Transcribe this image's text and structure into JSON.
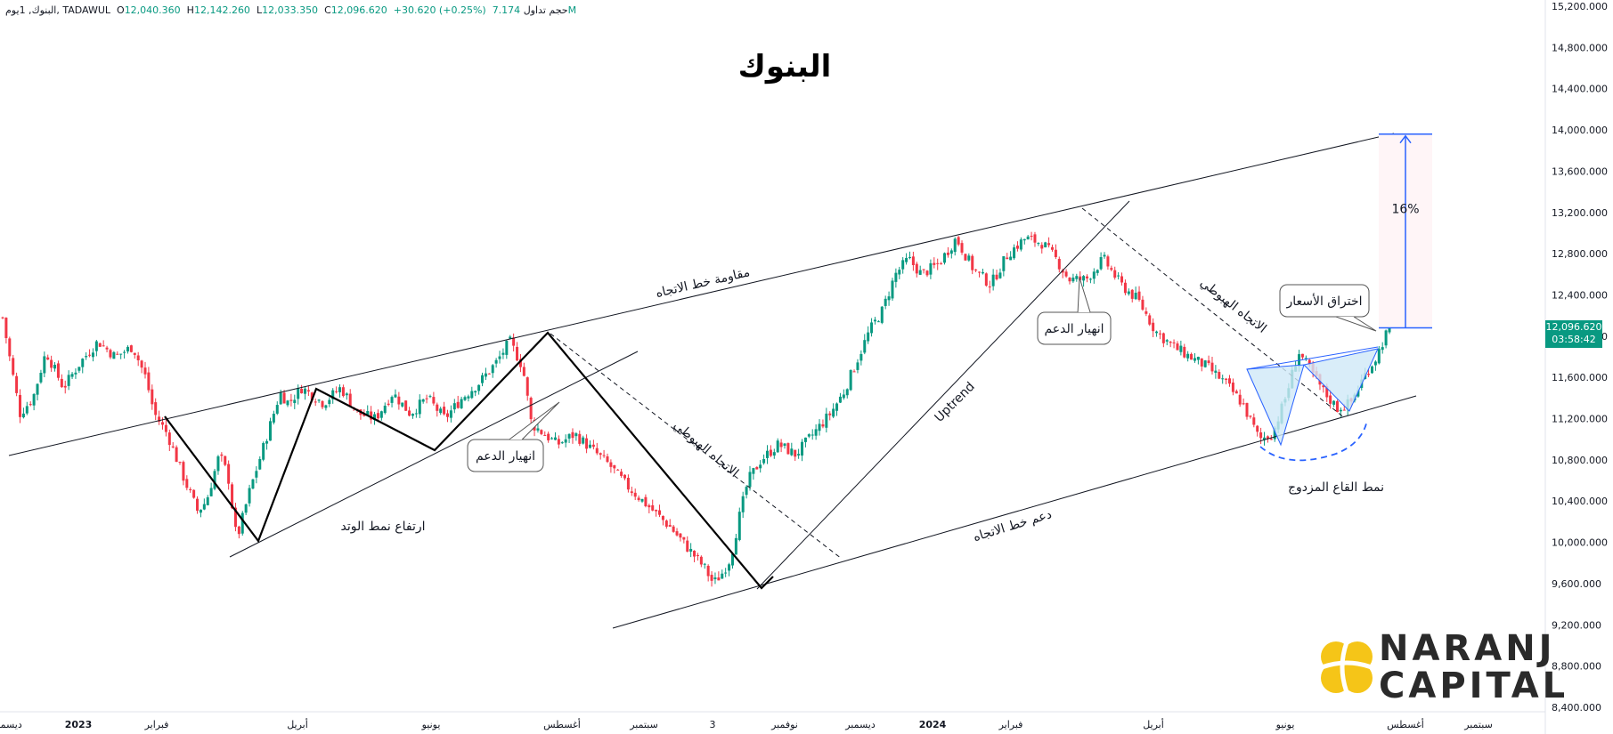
{
  "header": {
    "symbol": "البنوك",
    "interval": "1يوم",
    "exchange": "TADAWUL",
    "open_label": "O",
    "open": "12,040.360",
    "high_label": "H",
    "high": "12,142.260",
    "low_label": "L",
    "low": "12,033.350",
    "close_label": "C",
    "close": "12,096.620",
    "change": "+30.620 (+0.25%)",
    "volume_label": "حجم تداول",
    "volume": "7.174M"
  },
  "chart_data": {
    "type": "candlestick",
    "title": "البنوك",
    "price_axis_ticks": [
      15200,
      14800,
      14400,
      14000,
      13600,
      13200,
      12800,
      12400,
      12000,
      11600,
      11200,
      10800,
      10400,
      10000,
      9600,
      9200,
      8800,
      8400
    ],
    "price_axis_labels": [
      "15,200.000",
      "14,800.000",
      "14,400.000",
      "14,000.000",
      "13,600.000",
      "13,200.000",
      "12,800.000",
      "12,400.000",
      "12,000.000",
      "11,600.000",
      "11,200.000",
      "10,800.000",
      "10,400.000",
      "10,000.000",
      "9,600.000",
      "9,200.000",
      "8,800.000",
      "8,400.000"
    ],
    "ylim": [
      8400,
      15200
    ],
    "time_axis_labels": [
      "ديسمبر",
      "2023",
      "فبراير",
      "أبريل",
      "يونيو",
      "أغسطس",
      "سبتمبر",
      "3",
      "نوفمبر",
      "ديسمبر",
      "2024",
      "فبراير",
      "أبريل",
      "يونيو",
      "أغسطس",
      "سبتمبر"
    ],
    "time_axis_bold": [
      "2023",
      "2024"
    ],
    "last_price": "12,096.620",
    "countdown": "03:58:42",
    "target_percent": "16%",
    "target_top": 13960,
    "target_base": 12080,
    "price_path": [
      [
        0,
        12180
      ],
      [
        0.01,
        11700
      ],
      [
        0.02,
        11250
      ],
      [
        0.035,
        11400
      ],
      [
        0.05,
        11850
      ],
      [
        0.07,
        11500
      ],
      [
        0.09,
        11750
      ],
      [
        0.11,
        11950
      ],
      [
        0.13,
        11800
      ],
      [
        0.15,
        11900
      ],
      [
        0.165,
        11600
      ],
      [
        0.175,
        11250
      ],
      [
        0.19,
        11050
      ],
      [
        0.21,
        10600
      ],
      [
        0.225,
        10300
      ],
      [
        0.235,
        10400
      ],
      [
        0.25,
        10850
      ],
      [
        0.26,
        10650
      ],
      [
        0.27,
        10020
      ],
      [
        0.285,
        10500
      ],
      [
        0.3,
        10900
      ],
      [
        0.32,
        11450
      ],
      [
        0.33,
        11350
      ],
      [
        0.345,
        11500
      ],
      [
        0.37,
        11350
      ],
      [
        0.39,
        11500
      ],
      [
        0.41,
        11250
      ],
      [
        0.43,
        11200
      ],
      [
        0.45,
        11450
      ],
      [
        0.47,
        11250
      ],
      [
        0.49,
        11400
      ],
      [
        0.51,
        11200
      ],
      [
        0.53,
        11400
      ],
      [
        0.55,
        11550
      ],
      [
        0.57,
        11750
      ],
      [
        0.585,
        11950
      ],
      [
        0.6,
        11700
      ],
      [
        0.61,
        11150
      ],
      [
        0.625,
        11050
      ],
      [
        0.64,
        10950
      ],
      [
        0.66,
        11050
      ],
      [
        0.68,
        10900
      ],
      [
        0.7,
        10750
      ],
      [
        0.72,
        10550
      ],
      [
        0.745,
        10350
      ],
      [
        0.77,
        10150
      ],
      [
        0.79,
        9950
      ],
      [
        0.81,
        9750
      ],
      [
        0.82,
        9600
      ],
      [
        0.83,
        9700
      ],
      [
        0.84,
        9850
      ],
      [
        0.85,
        10250
      ],
      [
        0.86,
        10600
      ],
      [
        0.875,
        10800
      ],
      [
        0.895,
        10950
      ],
      [
        0.915,
        10850
      ],
      [
        0.935,
        11050
      ],
      [
        0.955,
        11250
      ],
      [
        0.97,
        11450
      ],
      [
        0.985,
        11750
      ],
      [
        1.0,
        12050
      ],
      [
        1.015,
        12250
      ],
      [
        1.03,
        12600
      ],
      [
        1.045,
        12750
      ],
      [
        1.06,
        12600
      ],
      [
        1.08,
        12700
      ],
      [
        1.1,
        12950
      ],
      [
        1.12,
        12650
      ],
      [
        1.14,
        12500
      ],
      [
        1.16,
        12800
      ],
      [
        1.18,
        12950
      ],
      [
        1.2,
        12900
      ],
      [
        1.215,
        12750
      ],
      [
        1.23,
        12550
      ],
      [
        1.25,
        12550
      ],
      [
        1.27,
        12750
      ],
      [
        1.29,
        12500
      ],
      [
        1.31,
        12350
      ],
      [
        1.33,
        12050
      ],
      [
        1.35,
        11900
      ],
      [
        1.37,
        11800
      ],
      [
        1.39,
        11700
      ],
      [
        1.41,
        11550
      ],
      [
        1.43,
        11350
      ],
      [
        1.45,
        11000
      ],
      [
        1.465,
        11050
      ],
      [
        1.48,
        11400
      ],
      [
        1.495,
        11850
      ],
      [
        1.51,
        11650
      ],
      [
        1.525,
        11450
      ],
      [
        1.54,
        11300
      ],
      [
        1.555,
        11350
      ],
      [
        1.57,
        11600
      ],
      [
        1.585,
        11800
      ],
      [
        1.6,
        12100
      ]
    ],
    "annotations": {
      "resistance": "مقاومة خط الاتجاه",
      "support": "دعم خط الاتجاه",
      "wedge": "ارتفاع نمط الوتد",
      "break1": "انهيار الدعم",
      "break2": "انهيار الدعم",
      "downtrend1": "الاتجاه الهبوطي",
      "downtrend2": "الاتجاه الهبوطي",
      "uptrend": "Uptrend",
      "breakout": "اختراق الأسعار",
      "double_bottom": "نمط القاع المزدوج"
    },
    "grid": false,
    "up_color": "#089981",
    "down_color": "#f23645"
  },
  "logo": {
    "line1": "NARANJ",
    "line2": "CAPITAL",
    "color": "#f5c518"
  },
  "colors": {
    "line": "#131722",
    "measure": "#2962ff",
    "tag": "#089981"
  }
}
